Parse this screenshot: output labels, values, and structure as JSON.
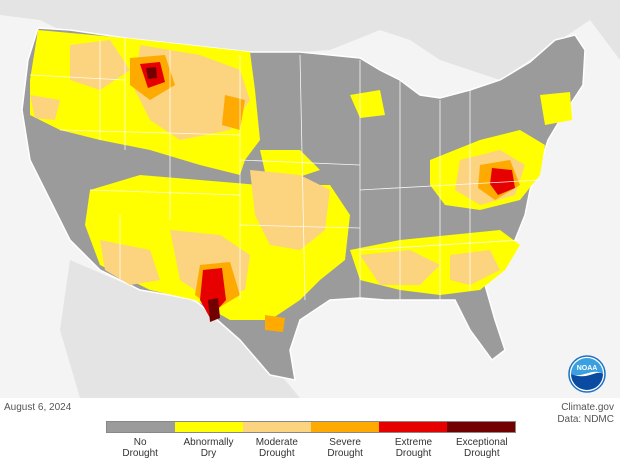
{
  "footer": {
    "date": "August 6, 2024",
    "source_line1": "Climate.gov",
    "source_line2": "Data: NDMC"
  },
  "logo": {
    "text": "NOAA"
  },
  "legend": {
    "categories": [
      {
        "line1": "No",
        "line2": "Drought",
        "color": "#9b9b9b"
      },
      {
        "line1": "Abnormally",
        "line2": "Dry",
        "color": "#ffff00"
      },
      {
        "line1": "Moderate",
        "line2": "Drought",
        "color": "#fcd37f"
      },
      {
        "line1": "Severe",
        "line2": "Drought",
        "color": "#ffaa00"
      },
      {
        "line1": "Extreme",
        "line2": "Drought",
        "color": "#e60000"
      },
      {
        "line1": "Exceptional",
        "line2": "Drought",
        "color": "#730000"
      }
    ]
  },
  "colors": {
    "background_land": "#e6e6e6",
    "ocean": "#f7f7f7",
    "state_border": "#ffffff"
  }
}
